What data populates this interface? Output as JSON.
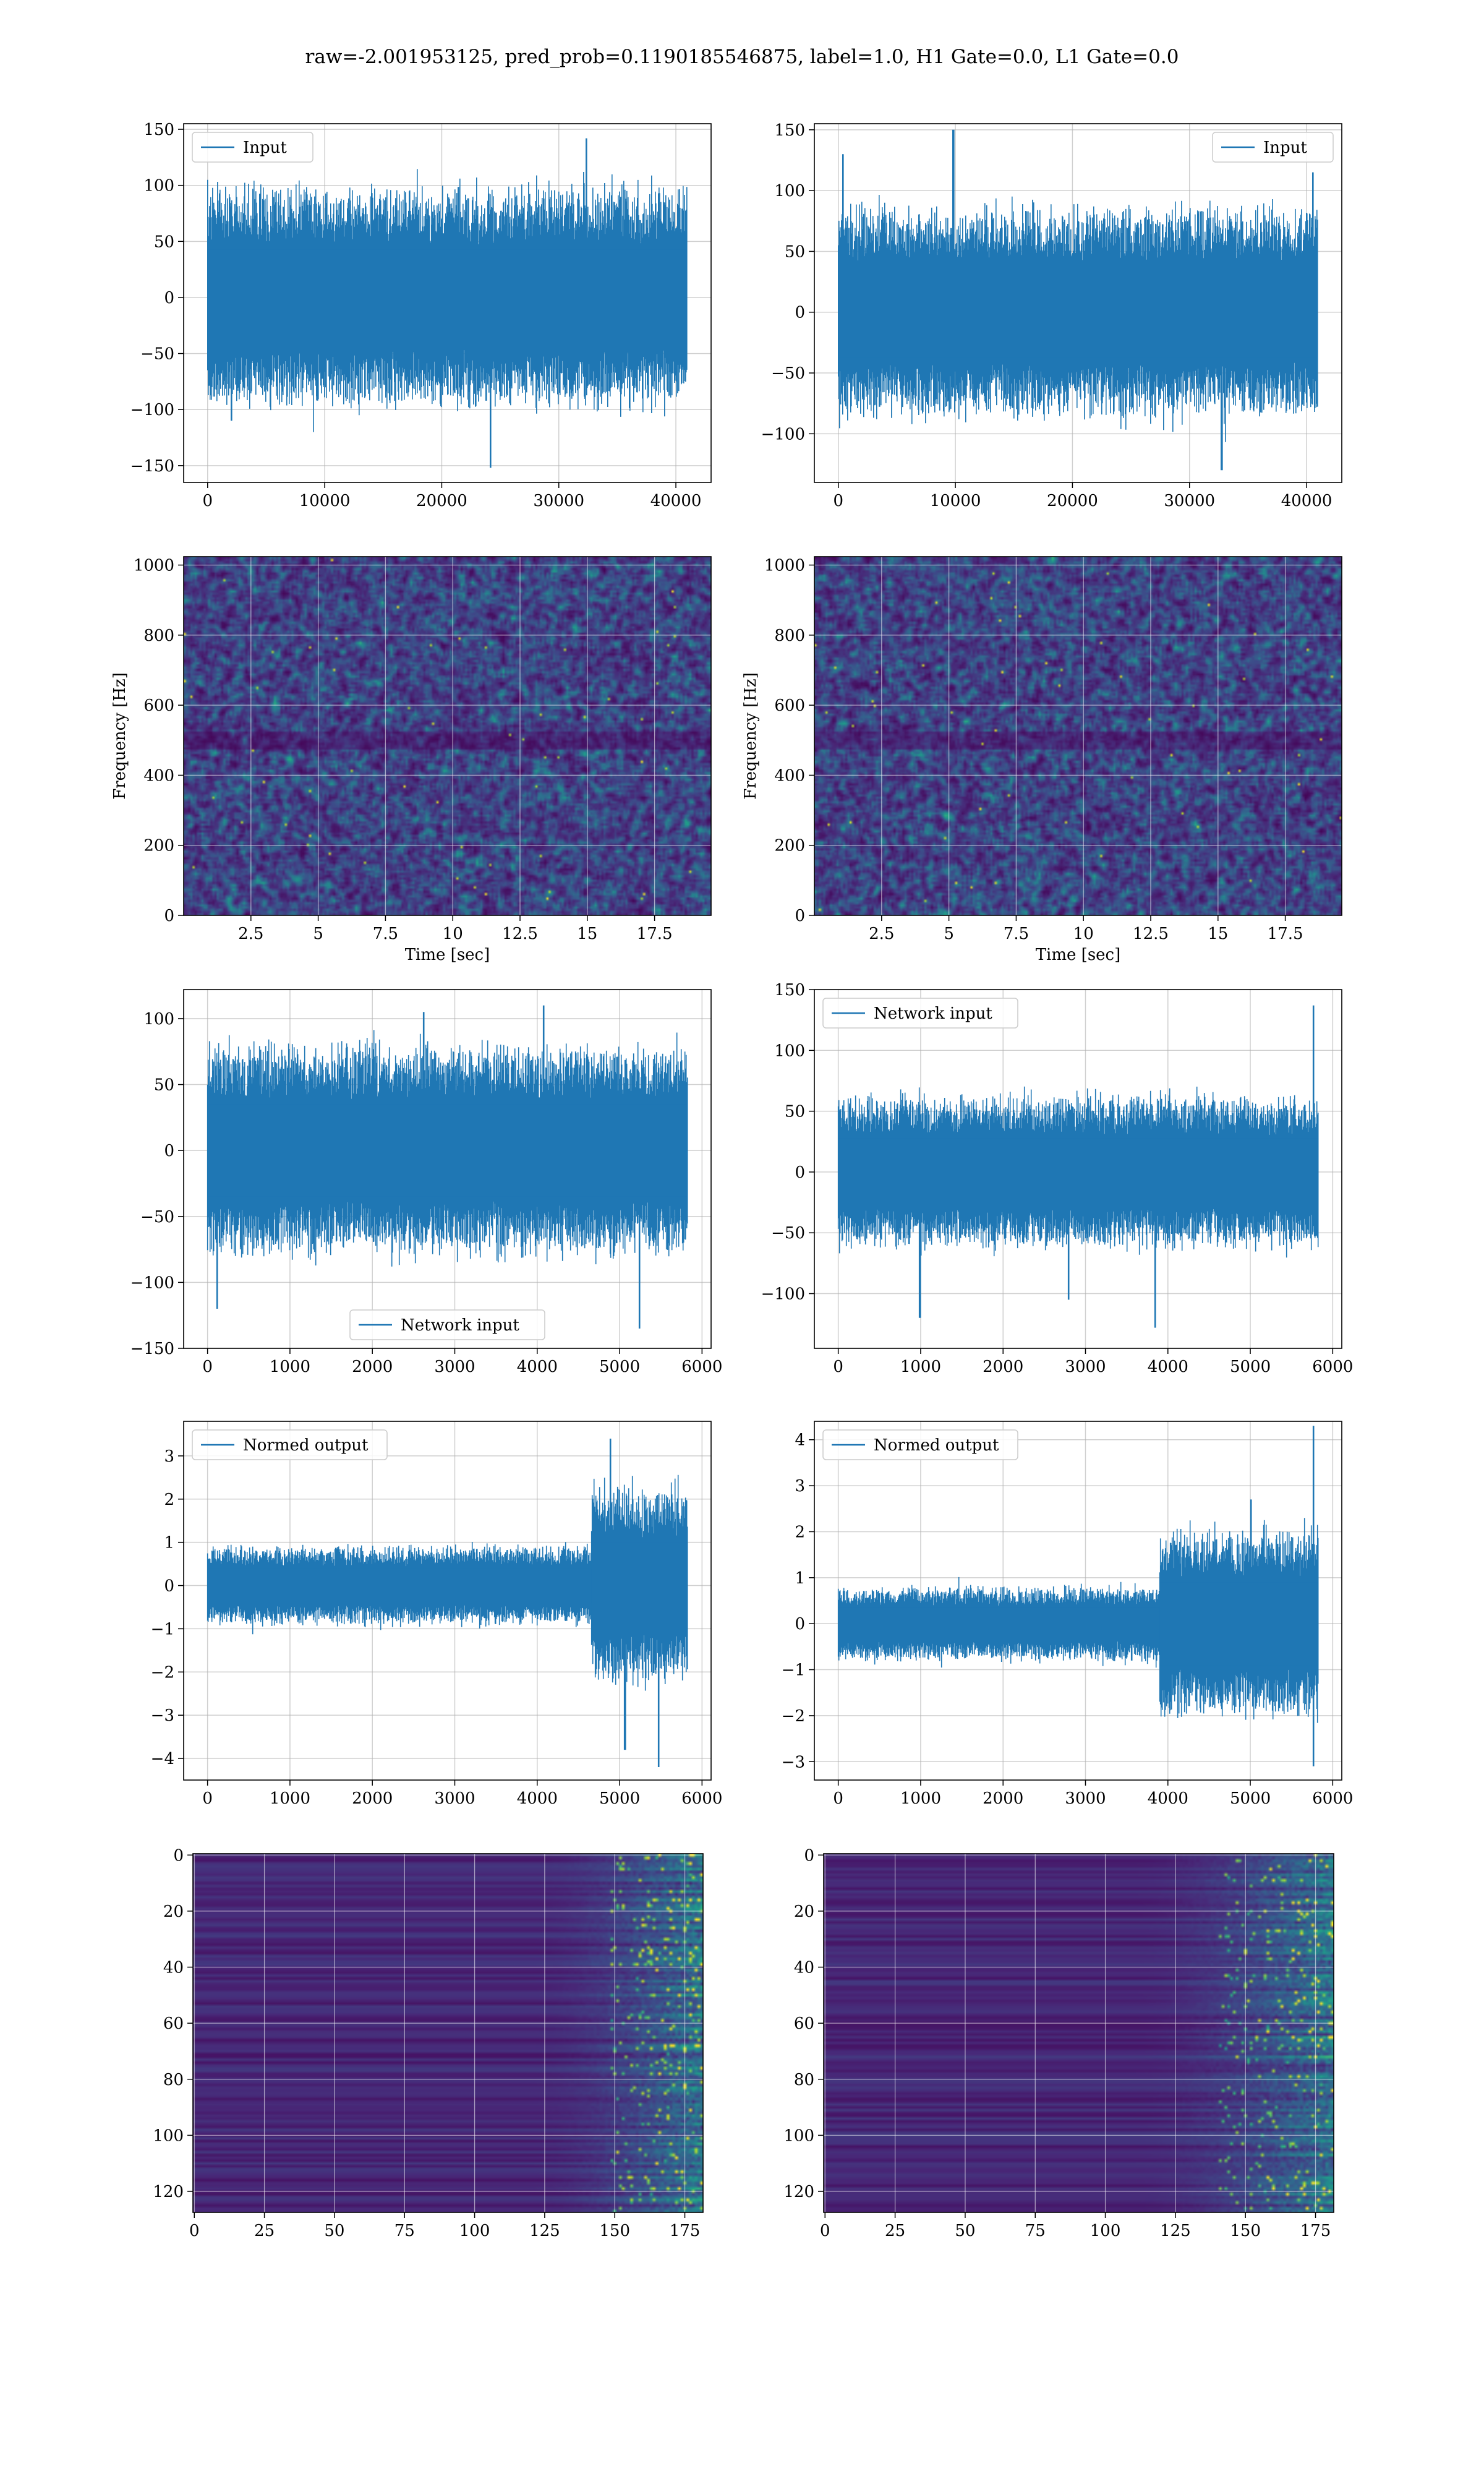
{
  "suptitle": "raw=-2.001953125, pred_prob=0.1190185546875, label=1.0, H1 Gate=0.0, L1 Gate=0.0",
  "colors": {
    "line": "#1f77b4",
    "grid": "#b0b0b0",
    "viridis_dark": "#440154",
    "viridis_mid": "#21918c",
    "viridis_bright": "#fde725"
  },
  "chart_data": [
    {
      "id": "p1",
      "type": "line",
      "description_signal": "noise",
      "n": 40960,
      "xlim": [
        -2048,
        43008
      ],
      "ylim": [
        -165,
        155
      ],
      "xticks": [
        0,
        10000,
        20000,
        30000,
        40000
      ],
      "yticks": [
        -150,
        -100,
        -50,
        0,
        50,
        100,
        150
      ],
      "legend": {
        "label": "Input",
        "loc": "upper left"
      },
      "envelope": {
        "amp_start": 85,
        "amp_end": 85,
        "step_frac": 1.0,
        "peaks": [
          [
            0.79,
            142
          ],
          [
            0.05,
            -110
          ],
          [
            0.59,
            -152
          ]
        ]
      }
    },
    {
      "id": "p2",
      "type": "line",
      "n": 40960,
      "xlim": [
        -2048,
        43008
      ],
      "ylim": [
        -140,
        155
      ],
      "xticks": [
        0,
        10000,
        20000,
        30000,
        40000
      ],
      "yticks": [
        -100,
        -50,
        0,
        50,
        100,
        150
      ],
      "legend": {
        "label": "Input",
        "loc": "upper right"
      },
      "envelope": {
        "amp_start": 75,
        "amp_end": 75,
        "step_frac": 1.0,
        "peaks": [
          [
            0.01,
            130
          ],
          [
            0.24,
            150
          ],
          [
            0.99,
            115
          ],
          [
            0.8,
            -130
          ]
        ]
      }
    },
    {
      "id": "p3",
      "type": "heatmap",
      "seed": 11,
      "xlim": [
        0,
        19.6
      ],
      "ylim": [
        0,
        1024
      ],
      "xticks": [
        2.5,
        5.0,
        7.5,
        10.0,
        12.5,
        15.0,
        17.5
      ],
      "yticks": [
        0,
        200,
        400,
        600,
        800,
        1000
      ],
      "xlabel": "Time [sec]",
      "ylabel": "Frequency [Hz]",
      "bands": [
        {
          "y": 500,
          "width": 25,
          "strength": 0.5
        }
      ]
    },
    {
      "id": "p4",
      "type": "heatmap",
      "seed": 29,
      "xlim": [
        0,
        19.6
      ],
      "ylim": [
        0,
        1024
      ],
      "xticks": [
        2.5,
        5.0,
        7.5,
        10.0,
        12.5,
        15.0,
        17.5
      ],
      "yticks": [
        0,
        200,
        400,
        600,
        800,
        1000
      ],
      "xlabel": "Time [sec]",
      "ylabel": "Frequency [Hz]",
      "bands": [
        {
          "y": 500,
          "width": 25,
          "strength": 0.5
        }
      ]
    },
    {
      "id": "p5",
      "type": "line",
      "n": 5820,
      "xlim": [
        -290,
        6110
      ],
      "ylim": [
        -150,
        122
      ],
      "xticks": [
        0,
        1000,
        2000,
        3000,
        4000,
        5000,
        6000
      ],
      "yticks": [
        -150,
        -100,
        -50,
        0,
        50,
        100
      ],
      "legend": {
        "label": "Network input",
        "loc": "lower center"
      },
      "envelope": {
        "amp_start": 70,
        "amp_end": 65,
        "step_frac": 1.0,
        "peaks": [
          [
            0.45,
            105
          ],
          [
            0.7,
            110
          ],
          [
            0.02,
            -120
          ],
          [
            0.9,
            -135
          ]
        ]
      }
    },
    {
      "id": "p6",
      "type": "line",
      "n": 5820,
      "xlim": [
        -290,
        6110
      ],
      "ylim": [
        -145,
        150
      ],
      "xticks": [
        0,
        1000,
        2000,
        3000,
        4000,
        5000,
        6000
      ],
      "yticks": [
        -100,
        -50,
        0,
        50,
        100,
        150
      ],
      "legend": {
        "label": "Network input",
        "loc": "upper left"
      },
      "envelope": {
        "amp_start": 55,
        "amp_end": 60,
        "step_frac": 1.0,
        "peaks": [
          [
            0.99,
            137
          ],
          [
            0.17,
            -120
          ],
          [
            0.66,
            -128
          ],
          [
            0.48,
            -105
          ]
        ]
      }
    },
    {
      "id": "p7",
      "type": "line",
      "n": 5820,
      "xlim": [
        -290,
        6110
      ],
      "ylim": [
        -4.5,
        3.8
      ],
      "xticks": [
        0,
        1000,
        2000,
        3000,
        4000,
        5000,
        6000
      ],
      "yticks": [
        -4,
        -3,
        -2,
        -1,
        0,
        1,
        2,
        3
      ],
      "legend": {
        "label": "Normed output",
        "loc": "upper left"
      },
      "envelope": {
        "amp_start": 0.8,
        "amp_end": 2.0,
        "step_frac": 0.8,
        "peaks": [
          [
            0.84,
            3.4
          ],
          [
            0.94,
            -4.2
          ],
          [
            0.87,
            -3.8
          ]
        ]
      }
    },
    {
      "id": "p8",
      "type": "line",
      "n": 5820,
      "xlim": [
        -290,
        6110
      ],
      "ylim": [
        -3.4,
        4.4
      ],
      "xticks": [
        0,
        1000,
        2000,
        3000,
        4000,
        5000,
        6000
      ],
      "yticks": [
        -3,
        -2,
        -1,
        0,
        1,
        2,
        3,
        4
      ],
      "legend": {
        "label": "Normed output",
        "loc": "upper left"
      },
      "envelope": {
        "amp_start": 0.7,
        "amp_end": 1.8,
        "step_frac": 0.67,
        "peaks": [
          [
            0.99,
            4.3
          ],
          [
            0.99,
            -3.1
          ],
          [
            0.86,
            2.7
          ]
        ]
      }
    },
    {
      "id": "p9",
      "type": "heatmap",
      "seed": 5,
      "xlim": [
        -0.5,
        181.5
      ],
      "ylim": [
        127.5,
        -0.5
      ],
      "xticks": [
        0,
        25,
        50,
        75,
        100,
        125,
        150,
        175
      ],
      "yticks": [
        0,
        20,
        40,
        60,
        80,
        100,
        120
      ],
      "activation": {
        "rows": 128,
        "cols": 182,
        "onset": 120,
        "hot_start": 148
      }
    },
    {
      "id": "p10",
      "type": "heatmap",
      "seed": 17,
      "xlim": [
        -0.5,
        181.5
      ],
      "ylim": [
        127.5,
        -0.5
      ],
      "xticks": [
        0,
        25,
        50,
        75,
        100,
        125,
        150,
        175
      ],
      "yticks": [
        0,
        20,
        40,
        60,
        80,
        100,
        120
      ],
      "activation": {
        "rows": 128,
        "cols": 182,
        "onset": 110,
        "hot_start": 140
      }
    }
  ]
}
